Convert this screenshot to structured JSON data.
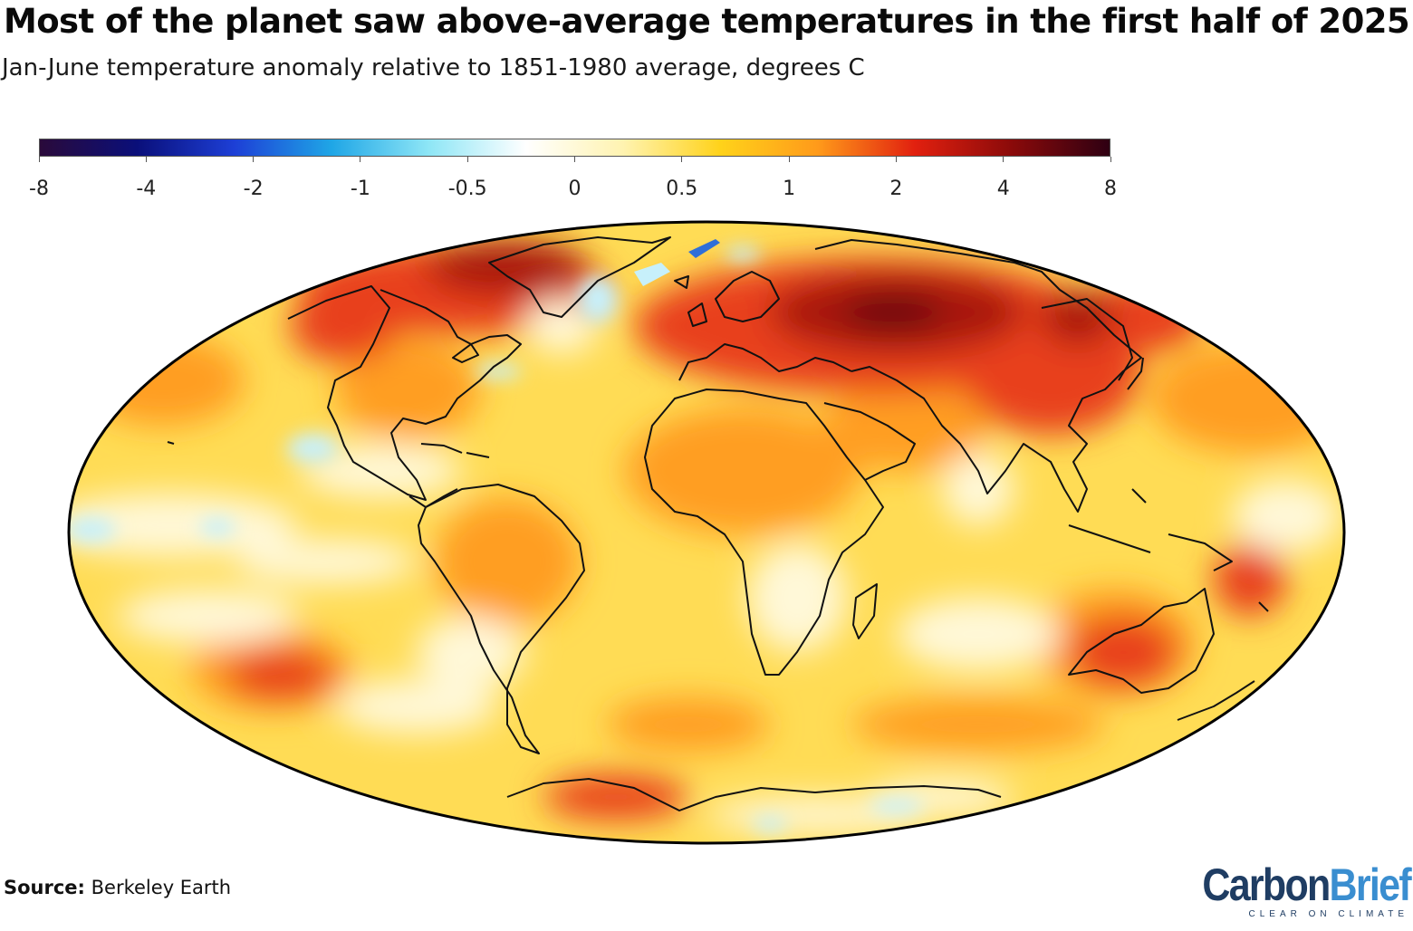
{
  "header": {
    "title": "Most of the planet saw above-average temperatures in the first half of 2025",
    "subtitle": "Jan-June temperature anomaly relative to 1851-1980 average, degrees C"
  },
  "colorbar": {
    "labels": [
      "-8",
      "-4",
      "-2",
      "-1",
      "-0.5",
      "0",
      "0.5",
      "1",
      "2",
      "4",
      "8"
    ],
    "colors": [
      "#2a0a3a",
      "#0a0f7a",
      "#1d3fd6",
      "#1fa6e6",
      "#8ee6f6",
      "#ffffff",
      "#fff3b0",
      "#ffd21a",
      "#ff9a1a",
      "#e1200f",
      "#8a0a0a",
      "#2e0012"
    ]
  },
  "map": {
    "projection": "Mollweide",
    "fill_colors": {
      "ocean_base": "#ffdc55",
      "warm": "#ff9e24",
      "hot": "#e8401a",
      "very_hot": "#a8130f",
      "extreme": "#6e070a",
      "neutral": "#fff8d8",
      "cool": "#c7f0fb",
      "cold": "#2f6fd8",
      "coast_line": "#111111"
    }
  },
  "footer": {
    "source_label": "Source:",
    "source_value": "Berkeley Earth"
  },
  "logo": {
    "part1": "Carbon",
    "part2": "Brief",
    "tagline": "CLEAR ON CLIMATE"
  }
}
